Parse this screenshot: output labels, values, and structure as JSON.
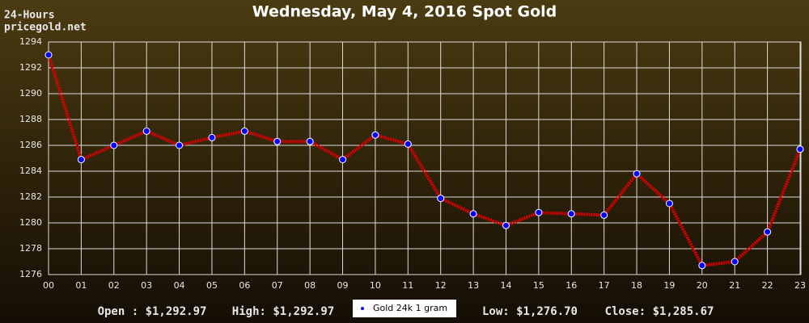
{
  "chart_data": {
    "type": "line",
    "title": "Wednesday, May 4, 2016 Spot Gold",
    "corner_labels": [
      "24-Hours",
      "pricegold.net"
    ],
    "categories": [
      "00",
      "01",
      "02",
      "03",
      "04",
      "05",
      "06",
      "07",
      "08",
      "09",
      "10",
      "11",
      "12",
      "13",
      "14",
      "15",
      "16",
      "17",
      "18",
      "19",
      "20",
      "21",
      "22",
      "23"
    ],
    "series": [
      {
        "name": "Gold 24k 1 gram",
        "color": "#dd0000",
        "marker_color": "#0000ff",
        "values": [
          1293.0,
          1284.9,
          1286.0,
          1287.1,
          1286.0,
          1286.6,
          1287.1,
          1286.3,
          1286.3,
          1284.9,
          1286.8,
          1286.1,
          1281.9,
          1280.7,
          1279.8,
          1280.8,
          1280.7,
          1280.6,
          1283.8,
          1281.5,
          1276.7,
          1277.0,
          1279.3,
          1285.7
        ]
      }
    ],
    "ylim": [
      1276,
      1294
    ],
    "yticks": [
      1276,
      1278,
      1280,
      1282,
      1284,
      1286,
      1288,
      1290,
      1292,
      1294
    ],
    "grid": true,
    "stats": [
      "Open : $1,292.97",
      "High: $1,292.97",
      "Low: $1,276.70",
      "Close: $1,285.67"
    ]
  }
}
